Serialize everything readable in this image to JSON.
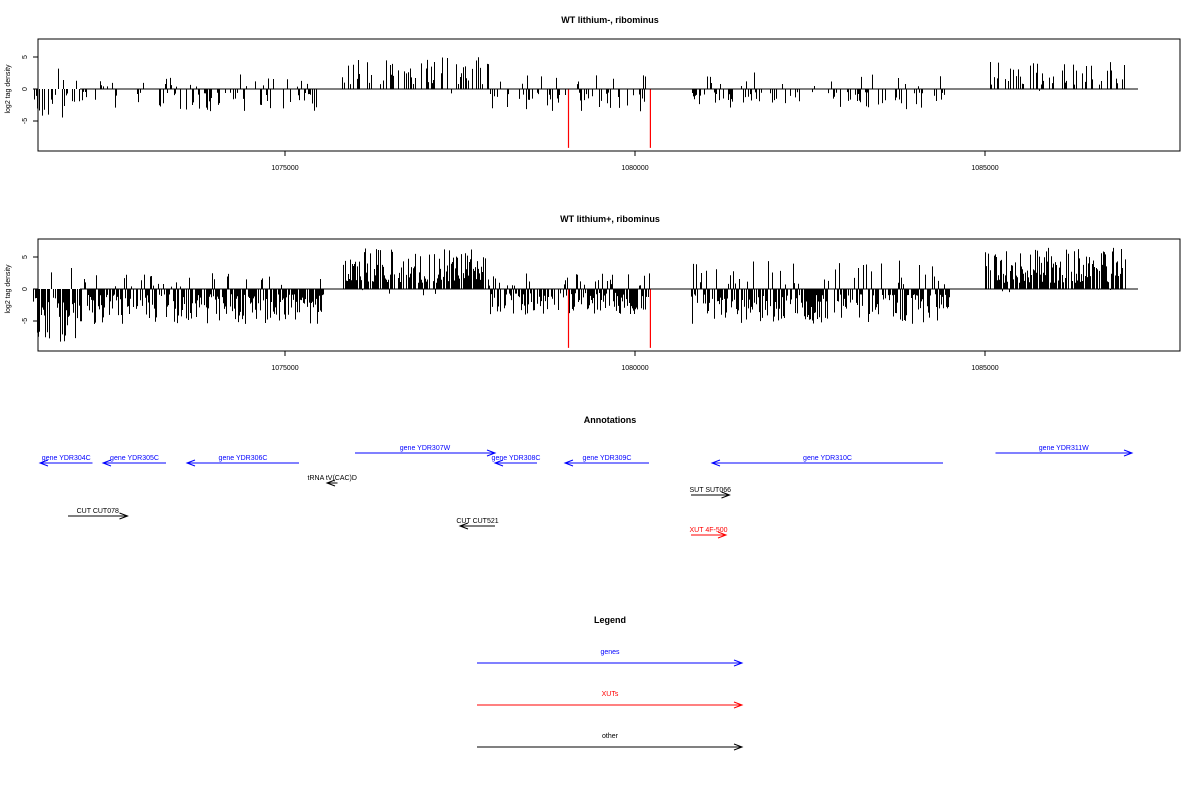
{
  "colors": {
    "background": "#ffffff",
    "bars_default": "#000000",
    "bars_highlight": "#ff0000",
    "genes": "#0000ff",
    "XUTs": "#ff0000",
    "other": "#000000"
  },
  "chart_data": [
    {
      "type": "bar",
      "panel": "track-lithium-minus",
      "title": "WT lithium-, ribominus",
      "xlabel": "",
      "ylabel": "log2 tag density",
      "xlim": [
        1071200,
        1087500
      ],
      "ylim": [
        -9.5,
        8
      ],
      "xticks": [
        "1075000",
        "1080000",
        "1085000"
      ],
      "yticks": [
        "-5",
        "0",
        "5"
      ],
      "grid": false,
      "segments": [
        {
          "from": 1071400,
          "to": 1071900,
          "min": -4.5,
          "max": 3.2,
          "neg_bias": 0.9
        },
        {
          "from": 1071900,
          "to": 1072300,
          "min": -3.0,
          "max": 2.0,
          "neg_bias": 0.85
        },
        {
          "from": 1072300,
          "to": 1075500,
          "min": -3.5,
          "max": 2.4,
          "neg_bias": 0.78
        },
        {
          "from": 1075500,
          "to": 1075560,
          "min": -5.5,
          "max": 0.5,
          "neg_bias": 1.0
        },
        {
          "from": 1075800,
          "to": 1077900,
          "min": -1.5,
          "max": 5.0,
          "neg_bias": 0.05
        },
        {
          "from": 1077900,
          "to": 1080200,
          "min": -3.5,
          "max": 2.2,
          "neg_bias": 0.8
        },
        {
          "from": 1080800,
          "to": 1084500,
          "min": -3.2,
          "max": 2.6,
          "neg_bias": 0.78
        },
        {
          "from": 1085000,
          "to": 1087000,
          "min": -0.3,
          "max": 4.5,
          "neg_bias": 0.05
        }
      ],
      "highlights": [
        {
          "x": 1079050,
          "value": -9.2
        },
        {
          "x": 1080220,
          "value": -9.2
        }
      ]
    },
    {
      "type": "bar",
      "panel": "track-lithium-plus",
      "title": "WT lithium+, ribominus",
      "xlabel": "",
      "ylabel": "log2 tag density",
      "xlim": [
        1071200,
        1087500
      ],
      "ylim": [
        -9.5,
        8
      ],
      "xticks": [
        "1075000",
        "1080000",
        "1085000"
      ],
      "yticks": [
        "-5",
        "0",
        "5"
      ],
      "grid": false,
      "segments": [
        {
          "from": 1071400,
          "to": 1072000,
          "min": -8.5,
          "max": 3.5,
          "neg_bias": 0.92
        },
        {
          "from": 1072000,
          "to": 1075500,
          "min": -5.5,
          "max": 2.5,
          "neg_bias": 0.82
        },
        {
          "from": 1075500,
          "to": 1075560,
          "min": -5.0,
          "max": 0.5,
          "neg_bias": 1.0
        },
        {
          "from": 1075800,
          "to": 1077900,
          "min": -1.0,
          "max": 6.5,
          "neg_bias": 0.05
        },
        {
          "from": 1077900,
          "to": 1080200,
          "min": -4.0,
          "max": 2.5,
          "neg_bias": 0.8
        },
        {
          "from": 1080800,
          "to": 1084500,
          "min": -5.5,
          "max": 4.5,
          "neg_bias": 0.8
        },
        {
          "from": 1085000,
          "to": 1087000,
          "min": -0.5,
          "max": 6.5,
          "neg_bias": 0.05
        }
      ],
      "highlights": [
        {
          "x": 1079050,
          "value": -9.2
        },
        {
          "x": 1080220,
          "value": -9.2
        }
      ]
    }
  ],
  "annotations": {
    "title": "Annotations",
    "items": [
      {
        "label": "gene YDR304C",
        "category": "genes",
        "strand": "-",
        "start": 1071500,
        "end": 1072250,
        "row": 1
      },
      {
        "label": "gene YDR305C",
        "category": "genes",
        "strand": "-",
        "start": 1072400,
        "end": 1073300,
        "row": 1
      },
      {
        "label": "gene YDR306C",
        "category": "genes",
        "strand": "-",
        "start": 1073600,
        "end": 1075200,
        "row": 1
      },
      {
        "label": "gene YDR307W",
        "category": "genes",
        "strand": "+",
        "start": 1076000,
        "end": 1078000,
        "row": 0
      },
      {
        "label": "gene YDR308C",
        "category": "genes",
        "strand": "-",
        "start": 1078000,
        "end": 1078600,
        "row": 1
      },
      {
        "label": "gene YDR309C",
        "category": "genes",
        "strand": "-",
        "start": 1079000,
        "end": 1080200,
        "row": 1
      },
      {
        "label": "gene YDR310C",
        "category": "genes",
        "strand": "-",
        "start": 1081100,
        "end": 1084400,
        "row": 1
      },
      {
        "label": "gene YDR311W",
        "category": "genes",
        "strand": "+",
        "start": 1085150,
        "end": 1087100,
        "row": 0
      },
      {
        "label": "tRNA tV(CAC)D",
        "category": "other",
        "strand": "-",
        "start": 1075600,
        "end": 1075750,
        "row": 2
      },
      {
        "label": "SUT SUT066",
        "category": "other",
        "strand": "+",
        "start": 1080800,
        "end": 1081350,
        "row": 3
      },
      {
        "label": "CUT CUT078",
        "category": "other",
        "strand": "+",
        "start": 1071900,
        "end": 1072750,
        "row": 4
      },
      {
        "label": "CUT CUT521",
        "category": "other",
        "strand": "-",
        "start": 1077500,
        "end": 1078000,
        "row": 5
      },
      {
        "label": "XUT 4F-500",
        "category": "XUTs",
        "strand": "+",
        "start": 1080800,
        "end": 1081300,
        "row": 6
      }
    ]
  },
  "legend": {
    "title": "Legend",
    "entries": [
      {
        "label": "genes",
        "category": "genes"
      },
      {
        "label": "XUTs",
        "category": "XUTs"
      },
      {
        "label": "other",
        "category": "other"
      }
    ]
  }
}
